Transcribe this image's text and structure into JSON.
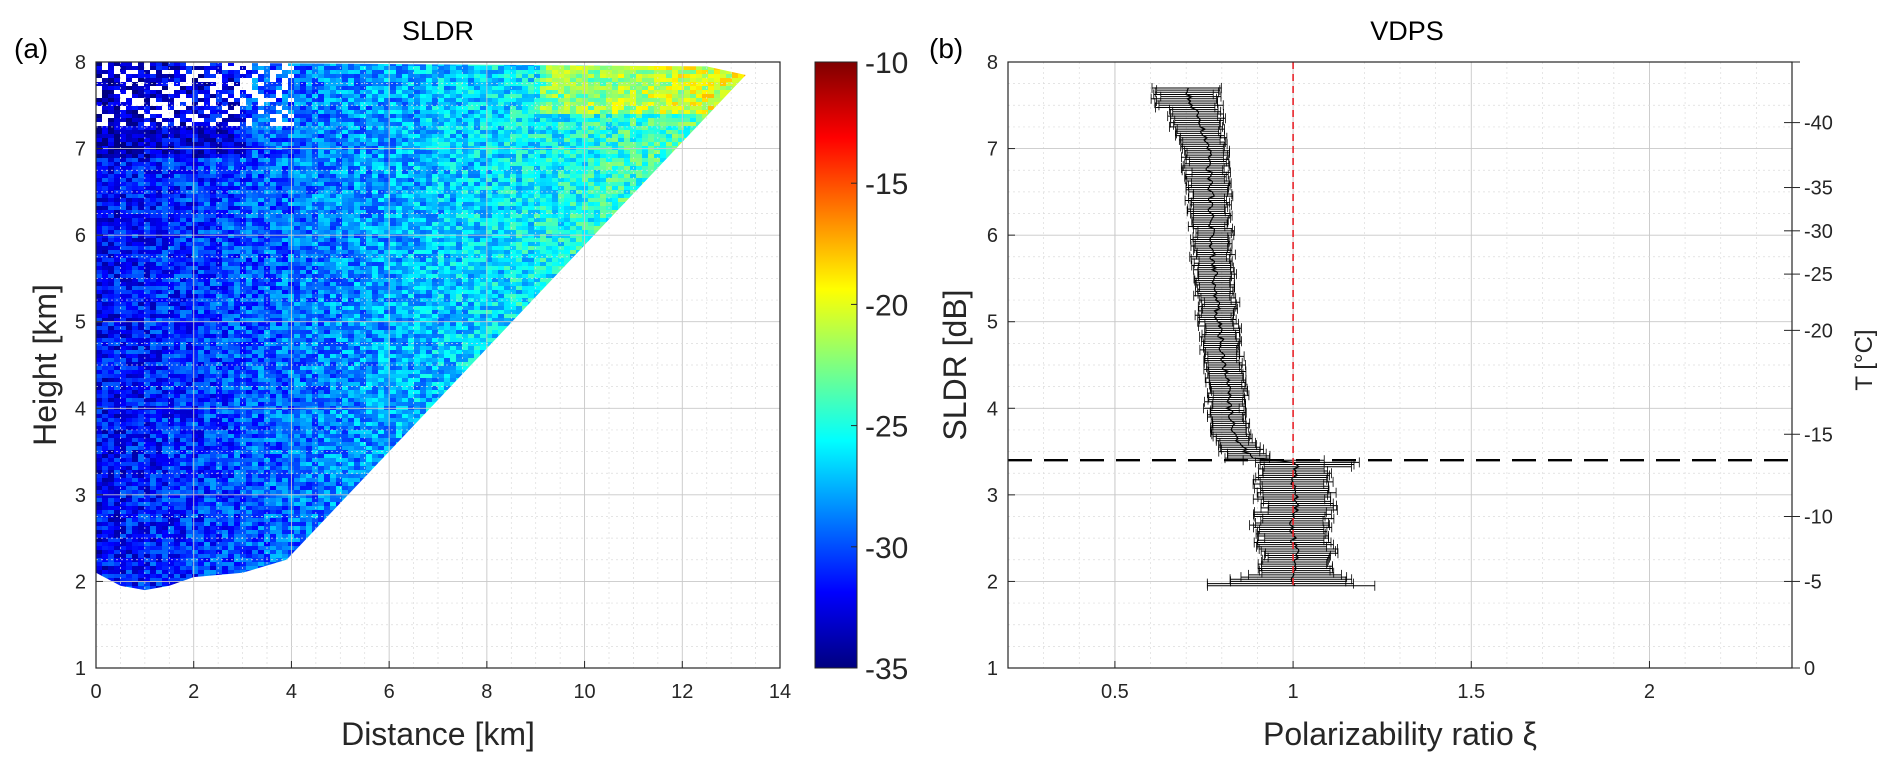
{
  "chart_data": [
    {
      "panel_label": "(a)",
      "type": "heatmap",
      "title": "SLDR",
      "xlabel": "Distance [km]",
      "ylabel": "Height [km]",
      "xlim": [
        0,
        14
      ],
      "ylim": [
        1,
        8
      ],
      "xticks": [
        0,
        2,
        4,
        6,
        8,
        10,
        12,
        14
      ],
      "yticks": [
        1,
        2,
        3,
        4,
        5,
        6,
        7,
        8
      ],
      "grid": true,
      "colormap": "jet",
      "colorbar": {
        "clim": [
          -35,
          -10
        ],
        "ticks": [
          -35,
          -30,
          -25,
          -20,
          -15,
          -10
        ]
      },
      "coverage": {
        "description_points": "approximate outline of the data region (distance km, height km)",
        "outline": [
          [
            0,
            2.1
          ],
          [
            0.5,
            1.95
          ],
          [
            1.0,
            1.9
          ],
          [
            1.5,
            1.95
          ],
          [
            2.0,
            2.05
          ],
          [
            3.0,
            2.1
          ],
          [
            3.9,
            2.25
          ],
          [
            13.3,
            7.85
          ],
          [
            12.5,
            7.95
          ],
          [
            0,
            8.0
          ]
        ]
      },
      "approx_values": [
        {
          "region": "near-range low altitude (0-3 km, 2-7 km)",
          "sldr_db": -31
        },
        {
          "region": "mid range (4-8 km)",
          "sldr_db": -28
        },
        {
          "region": "far range upper edge (10-13 km, 6-8 km)",
          "sldr_db": -23
        }
      ]
    },
    {
      "panel_label": "(b)",
      "type": "scatter",
      "title": "VDPS",
      "xlabel": "Polarizability ratio ξ",
      "ylabel": "SLDR [dB]",
      "y2label": "T [°C]",
      "xlim": [
        0.2,
        2.4
      ],
      "ylim": [
        1,
        8
      ],
      "xticks": [
        0.5,
        1,
        1.5,
        2
      ],
      "xticklabels": [
        "0.5",
        "1",
        "1.5",
        "2"
      ],
      "yticks": [
        1,
        2,
        3,
        4,
        5,
        6,
        7,
        8
      ],
      "y2ticks": [
        {
          "label": "0",
          "height_km": 1.0
        },
        {
          "label": "-5",
          "height_km": 2.0
        },
        {
          "label": "-10",
          "height_km": 2.75
        },
        {
          "label": "-15",
          "height_km": 3.7
        },
        {
          "label": "-20",
          "height_km": 4.9
        },
        {
          "label": "-25",
          "height_km": 5.55
        },
        {
          "label": "-30",
          "height_km": 6.05
        },
        {
          "label": "-35",
          "height_km": 6.55
        },
        {
          "label": "-40",
          "height_km": 7.3
        }
      ],
      "grid": true,
      "reference_line_x": 1,
      "melting_layer_height_km": 3.4,
      "profile": {
        "height_km": [
          1.95,
          2.1,
          2.3,
          2.5,
          2.7,
          2.9,
          3.1,
          3.3,
          3.38,
          3.42,
          3.6,
          3.8,
          4.0,
          4.5,
          5.0,
          5.5,
          6.0,
          6.5,
          7.0,
          7.3,
          7.55,
          7.7
        ],
        "xi": [
          1.0,
          1.0,
          1.01,
          1.0,
          1.0,
          1.01,
          1.0,
          1.01,
          1.0,
          0.88,
          0.85,
          0.83,
          0.82,
          0.81,
          0.79,
          0.78,
          0.77,
          0.77,
          0.76,
          0.74,
          0.71,
          0.7
        ],
        "err_lo": [
          0.25,
          0.1,
          0.1,
          0.1,
          0.1,
          0.1,
          0.1,
          0.1,
          0.1,
          0.07,
          0.06,
          0.06,
          0.06,
          0.05,
          0.05,
          0.05,
          0.05,
          0.06,
          0.07,
          0.08,
          0.09,
          0.1
        ],
        "err_hi": [
          0.2,
          0.1,
          0.1,
          0.1,
          0.1,
          0.1,
          0.1,
          0.1,
          0.2,
          0.05,
          0.04,
          0.04,
          0.04,
          0.05,
          0.05,
          0.05,
          0.05,
          0.05,
          0.05,
          0.06,
          0.08,
          0.1
        ]
      }
    }
  ]
}
